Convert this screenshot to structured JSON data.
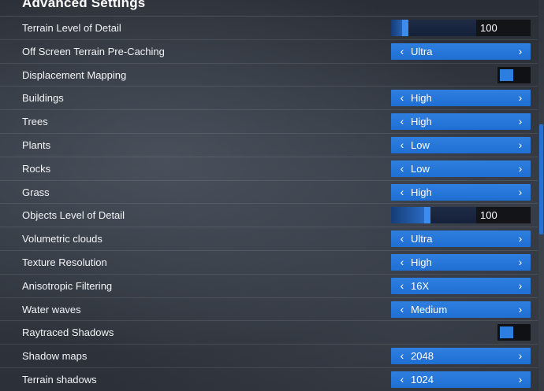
{
  "section": {
    "title": "Advanced Settings"
  },
  "rows": [
    {
      "name": "terrain-lod",
      "label": "Terrain Level of Detail",
      "type": "slider",
      "value": "100",
      "fill_fraction": 0.2
    },
    {
      "name": "off-screen-terrain",
      "label": "Off Screen Terrain Pre-Caching",
      "type": "selector",
      "value": "Ultra"
    },
    {
      "name": "displacement-mapping",
      "label": "Displacement Mapping",
      "type": "toggle",
      "value": "off"
    },
    {
      "name": "buildings",
      "label": "Buildings",
      "type": "selector",
      "value": "High"
    },
    {
      "name": "trees",
      "label": "Trees",
      "type": "selector",
      "value": "High"
    },
    {
      "name": "plants",
      "label": "Plants",
      "type": "selector",
      "value": "Low"
    },
    {
      "name": "rocks",
      "label": "Rocks",
      "type": "selector",
      "value": "Low"
    },
    {
      "name": "grass",
      "label": "Grass",
      "type": "selector",
      "value": "High"
    },
    {
      "name": "objects-lod",
      "label": "Objects Level of Detail",
      "type": "slider",
      "value": "100",
      "fill_fraction": 0.46
    },
    {
      "name": "volumetric-clouds",
      "label": "Volumetric clouds",
      "type": "selector",
      "value": "Ultra"
    },
    {
      "name": "texture-resolution",
      "label": "Texture Resolution",
      "type": "selector",
      "value": "High"
    },
    {
      "name": "anisotropic-filtering",
      "label": "Anisotropic Filtering",
      "type": "selector",
      "value": "16X"
    },
    {
      "name": "water-waves",
      "label": "Water waves",
      "type": "selector",
      "value": "Medium"
    },
    {
      "name": "raytraced-shadows",
      "label": "Raytraced Shadows",
      "type": "toggle",
      "value": "off"
    },
    {
      "name": "shadow-maps",
      "label": "Shadow maps",
      "type": "selector",
      "value": "2048"
    },
    {
      "name": "terrain-shadows",
      "label": "Terrain shadows",
      "type": "selector",
      "value": "1024"
    }
  ],
  "glyphs": {
    "arrow_left": "‹",
    "arrow_right": "›"
  },
  "colors": {
    "accent": "#1f6fd4",
    "slider_fill": "#2c73d2",
    "toggle_bg": "#0f1114"
  },
  "scroll": {
    "position_fraction": 0.32
  }
}
